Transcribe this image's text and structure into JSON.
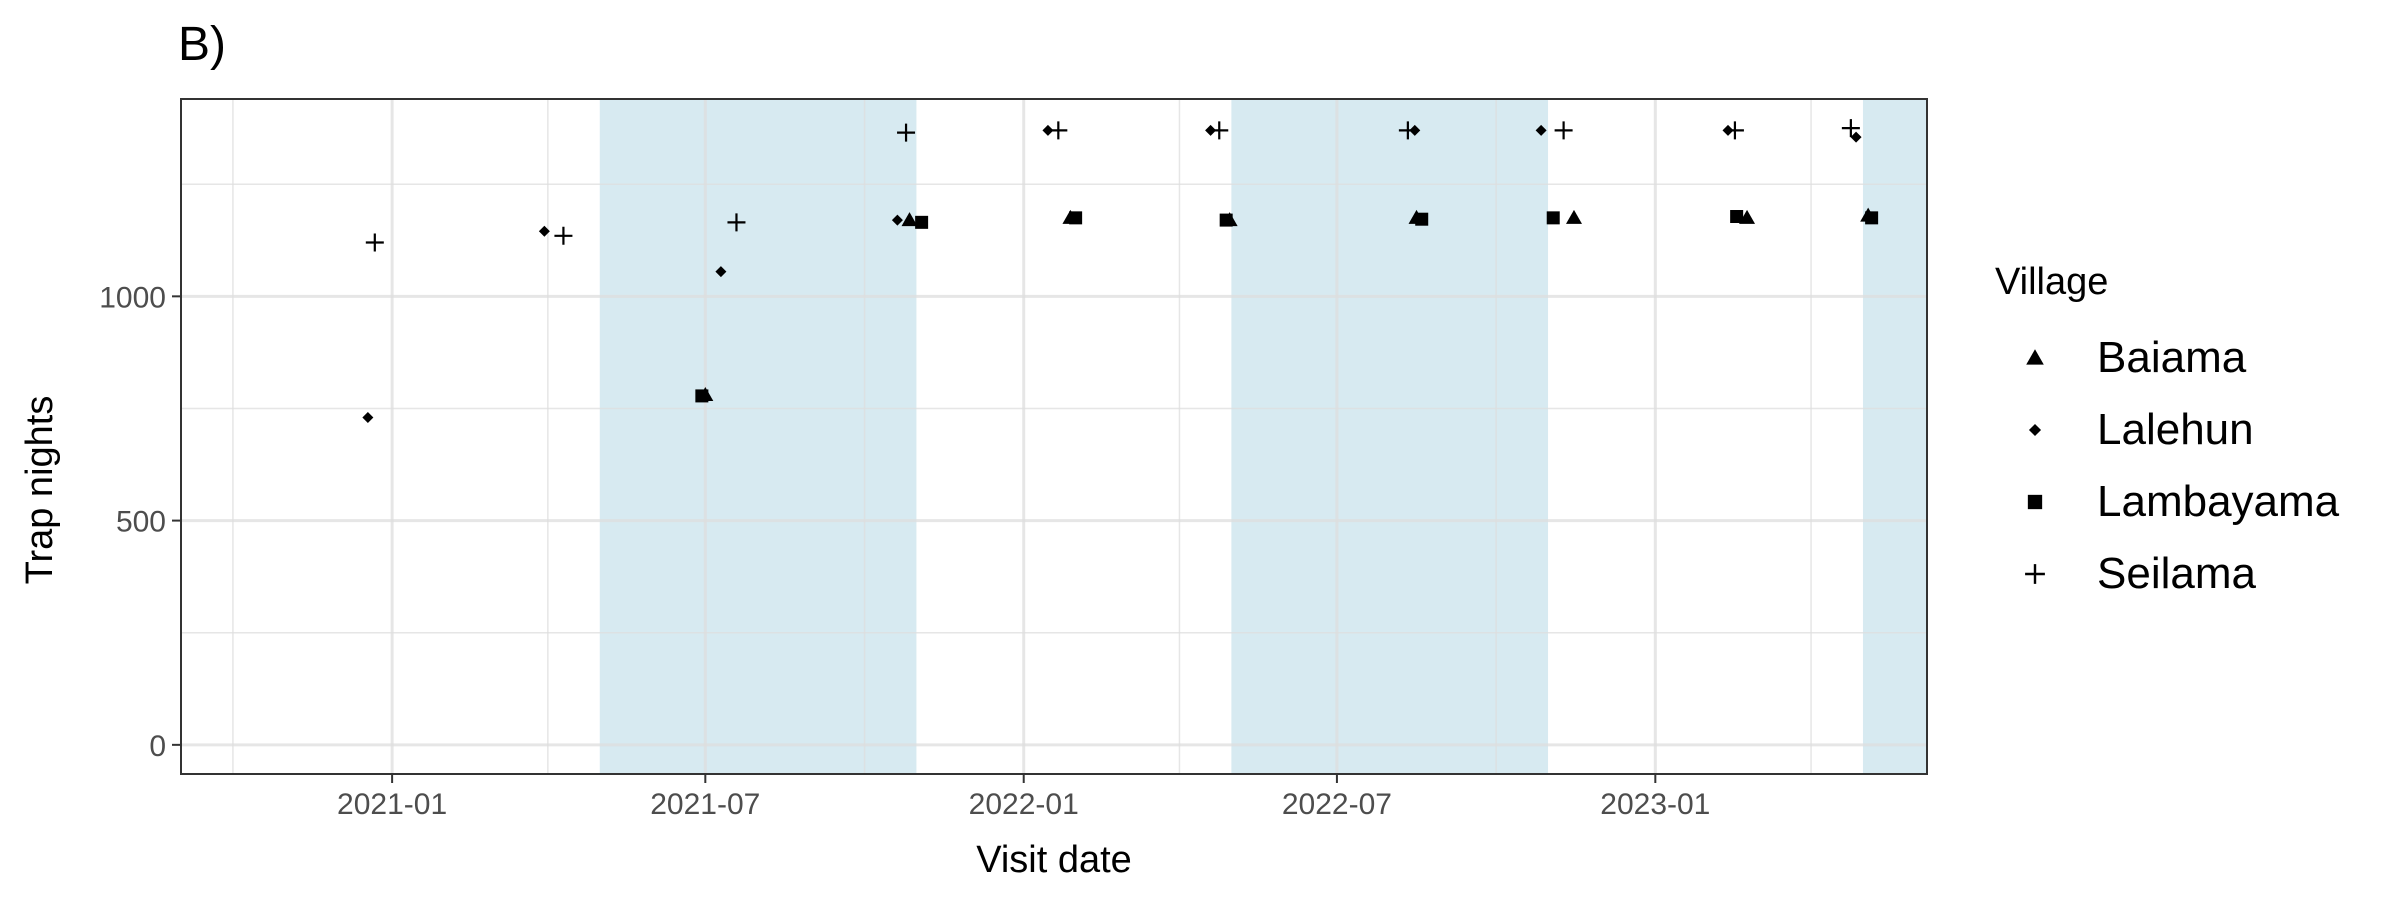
{
  "chart_data": {
    "type": "scatter",
    "panel_label": "B)",
    "xlabel": "Visit date",
    "ylabel": "Trap nights",
    "x_ticks": [
      "2021-01",
      "2021-07",
      "2022-01",
      "2022-07",
      "2023-01"
    ],
    "x_tick_dates": [
      "2021-01-01",
      "2021-07-01",
      "2022-01-01",
      "2022-07-01",
      "2023-01-01"
    ],
    "x_minor_dates": [
      "2020-10-01",
      "2021-04-01",
      "2021-10-01",
      "2022-04-01",
      "2022-10-01",
      "2023-04-01"
    ],
    "xlim": [
      "2020-09-01",
      "2023-06-07"
    ],
    "y_ticks": [
      0,
      500,
      1000
    ],
    "y_minor": [
      250,
      750,
      1250
    ],
    "ylim": [
      -65,
      1440
    ],
    "grid": true,
    "shaded_periods": [
      {
        "start": "2021-05-01",
        "end": "2021-10-31"
      },
      {
        "start": "2022-05-01",
        "end": "2022-10-31"
      },
      {
        "start": "2023-05-01",
        "end": "2023-06-07"
      }
    ],
    "shade_color": "#d7eaf1",
    "legend": {
      "title": "Village",
      "position": "right"
    },
    "series": [
      {
        "name": "Baiama",
        "shape": "triangle",
        "points": [
          {
            "x": "2021-07-01",
            "y": 780
          },
          {
            "x": "2021-10-27",
            "y": 1170
          },
          {
            "x": "2022-01-28",
            "y": 1175
          },
          {
            "x": "2022-04-30",
            "y": 1170
          },
          {
            "x": "2022-08-16",
            "y": 1175
          },
          {
            "x": "2022-11-15",
            "y": 1175
          },
          {
            "x": "2023-02-23",
            "y": 1175
          },
          {
            "x": "2023-05-04",
            "y": 1180
          }
        ]
      },
      {
        "name": "Lalehun",
        "shape": "diamond",
        "points": [
          {
            "x": "2020-12-18",
            "y": 730
          },
          {
            "x": "2021-03-30",
            "y": 1145
          },
          {
            "x": "2021-07-10",
            "y": 1055
          },
          {
            "x": "2021-10-20",
            "y": 1170
          },
          {
            "x": "2022-01-15",
            "y": 1370
          },
          {
            "x": "2022-04-19",
            "y": 1370
          },
          {
            "x": "2022-08-15",
            "y": 1370
          },
          {
            "x": "2022-10-27",
            "y": 1370
          },
          {
            "x": "2023-02-12",
            "y": 1370
          },
          {
            "x": "2023-04-27",
            "y": 1355
          }
        ]
      },
      {
        "name": "Lambayama",
        "shape": "square",
        "points": [
          {
            "x": "2021-06-29",
            "y": 778
          },
          {
            "x": "2021-11-03",
            "y": 1165
          },
          {
            "x": "2022-01-31",
            "y": 1175
          },
          {
            "x": "2022-04-28",
            "y": 1170
          },
          {
            "x": "2022-08-19",
            "y": 1172
          },
          {
            "x": "2022-11-03",
            "y": 1175
          },
          {
            "x": "2023-02-17",
            "y": 1178
          },
          {
            "x": "2023-05-06",
            "y": 1175
          }
        ]
      },
      {
        "name": "Seilama",
        "shape": "plus",
        "points": [
          {
            "x": "2020-12-22",
            "y": 1120
          },
          {
            "x": "2021-04-10",
            "y": 1135
          },
          {
            "x": "2021-07-19",
            "y": 1165
          },
          {
            "x": "2021-10-25",
            "y": 1365
          },
          {
            "x": "2022-01-21",
            "y": 1370
          },
          {
            "x": "2022-04-24",
            "y": 1370
          },
          {
            "x": "2022-08-11",
            "y": 1370
          },
          {
            "x": "2022-11-09",
            "y": 1370
          },
          {
            "x": "2023-02-16",
            "y": 1370
          },
          {
            "x": "2023-04-24",
            "y": 1375
          }
        ]
      }
    ]
  }
}
